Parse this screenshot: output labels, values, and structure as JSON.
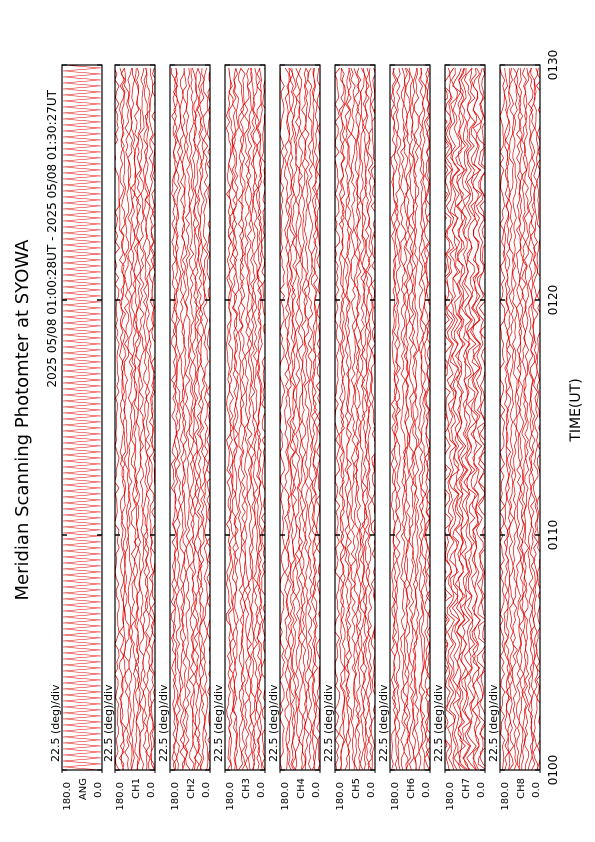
{
  "chart_data": {
    "type": "line",
    "title": "Meridian Scanning Photomter at SYOWA",
    "subtitle": "2025 05/08 01:00:28UT - 2025 05/08 01:30:27UT",
    "xlabel": "TIME(UT)",
    "xlim": [
      60,
      90
    ],
    "xticks": [
      {
        "value": 60,
        "label": "0100"
      },
      {
        "value": 70,
        "label": "0110"
      },
      {
        "value": 80,
        "label": "0120"
      },
      {
        "value": 90,
        "label": "0130"
      }
    ],
    "color": "#e00000",
    "panels": [
      {
        "label": "ANG",
        "scale": "22.5 (deg)/div",
        "ylim": [
          0,
          180
        ],
        "yticks": [
          {
            "value": 0,
            "label": "0.0"
          },
          {
            "value": 180,
            "label": "180.0"
          }
        ]
      },
      {
        "label": "CH1",
        "scale": "22.5 (deg)/div",
        "ylim": [
          0,
          180
        ],
        "yticks": [
          {
            "value": 0,
            "label": "0.0"
          },
          {
            "value": 180,
            "label": "180.0"
          }
        ]
      },
      {
        "label": "CH2",
        "scale": "22.5 (deg)/div",
        "ylim": [
          0,
          180
        ],
        "yticks": [
          {
            "value": 0,
            "label": "0.0"
          },
          {
            "value": 180,
            "label": "180.0"
          }
        ]
      },
      {
        "label": "CH3",
        "scale": "22.5 (deg)/div",
        "ylim": [
          0,
          180
        ],
        "yticks": [
          {
            "value": 0,
            "label": "0.0"
          },
          {
            "value": 180,
            "label": "180.0"
          }
        ]
      },
      {
        "label": "CH4",
        "scale": "22.5 (deg)/div",
        "ylim": [
          0,
          180
        ],
        "yticks": [
          {
            "value": 0,
            "label": "0.0"
          },
          {
            "value": 180,
            "label": "180.0"
          }
        ]
      },
      {
        "label": "CH5",
        "scale": "22.5 (deg)/div",
        "ylim": [
          0,
          180
        ],
        "yticks": [
          {
            "value": 0,
            "label": "0.0"
          },
          {
            "value": 180,
            "label": "180.0"
          }
        ]
      },
      {
        "label": "CH6",
        "scale": "22.5 (deg)/div",
        "ylim": [
          0,
          180
        ],
        "yticks": [
          {
            "value": 0,
            "label": "0.0"
          },
          {
            "value": 180,
            "label": "180.0"
          }
        ]
      },
      {
        "label": "CH7",
        "scale": "22.5 (deg)/div",
        "ylim": [
          0,
          180
        ],
        "yticks": [
          {
            "value": 0,
            "label": "0.0"
          },
          {
            "value": 180,
            "label": "180.0"
          }
        ]
      },
      {
        "label": "CH8",
        "scale": "22.5 (deg)/div",
        "ylim": [
          0,
          180
        ],
        "yticks": [
          {
            "value": 0,
            "label": "0.0"
          },
          {
            "value": 180,
            "label": "180.0"
          }
        ]
      }
    ]
  }
}
